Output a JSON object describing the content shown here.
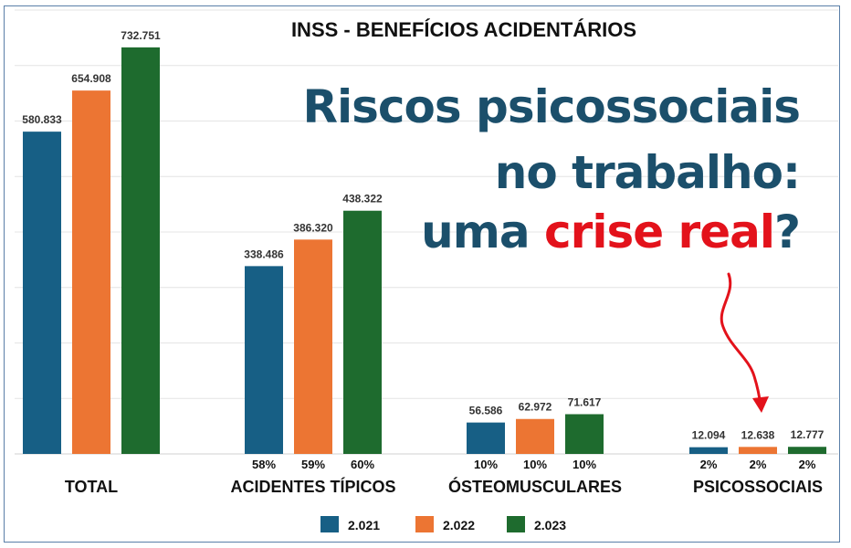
{
  "chart_data": {
    "type": "bar",
    "title": "INSS  -  BENEFÍCIOS ACIDENTÁRIOS",
    "categories": [
      "TOTAL",
      "ACIDENTES TÍPICOS",
      "ÓSTEOMUSCULARES",
      "PSICOSSOCIAIS"
    ],
    "series": [
      {
        "name": "2.021",
        "color": "#175f85",
        "values": [
          580833,
          338486,
          56586,
          12094
        ],
        "labels": [
          "580.833",
          "338.486",
          "56.586",
          "12.094"
        ],
        "shares": [
          "",
          "58%",
          "10%",
          "2%"
        ]
      },
      {
        "name": "2.022",
        "color": "#ec7533",
        "values": [
          654908,
          386320,
          62972,
          12638
        ],
        "labels": [
          "654.908",
          "386.320",
          "62.972",
          "12.638"
        ],
        "shares": [
          "",
          "59%",
          "10%",
          "2%"
        ]
      },
      {
        "name": "2.023",
        "color": "#1e6b2e",
        "values": [
          732751,
          438322,
          71617,
          12777
        ],
        "labels": [
          "732.751",
          "438.322",
          "71.617",
          "12.777"
        ],
        "shares": [
          "",
          "60%",
          "10%",
          "2%"
        ]
      }
    ],
    "ylim": [
      0,
      800000
    ],
    "grid": true,
    "legend_position": "bottom"
  },
  "overlay": {
    "line1": "Riscos psicossociais",
    "line2": "no trabalho:",
    "line3_prefix": "uma ",
    "line3_highlight": "crise real",
    "line3_suffix": "?"
  },
  "colors": {
    "overlay_text": "#1b4f6b",
    "highlight": "#e3121b",
    "arrow": "#e3121b"
  }
}
